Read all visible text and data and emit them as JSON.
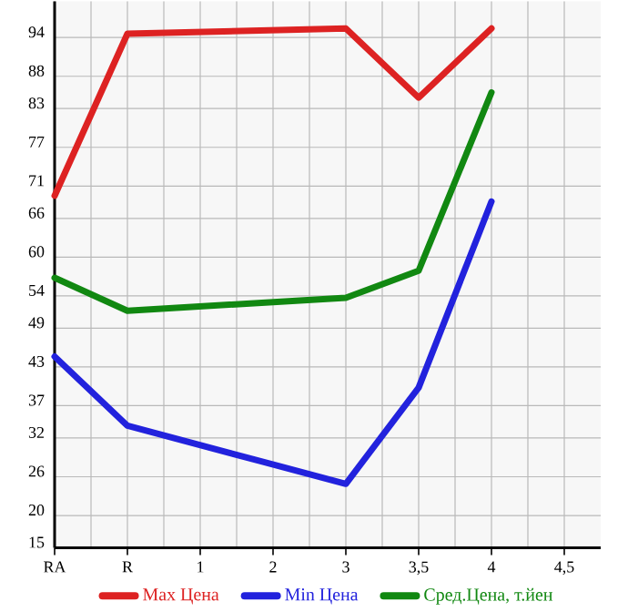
{
  "chart_data": {
    "type": "line",
    "categories": [
      "RA",
      "R",
      "1",
      "2",
      "3",
      "3,5",
      "4",
      "4,5"
    ],
    "series": [
      {
        "name": "Max Цена",
        "color": "#dd2222",
        "values": [
          69.5,
          94.6,
          null,
          null,
          95.4,
          84.7,
          95.4,
          null
        ]
      },
      {
        "name": "Min Цена",
        "color": "#2222dd",
        "values": [
          44.6,
          33.9,
          null,
          null,
          24.9,
          39.8,
          68.6,
          null
        ]
      },
      {
        "name": "Сред.Цена, т.йен",
        "color": "#118811",
        "values": [
          56.8,
          51.7,
          null,
          null,
          53.7,
          57.9,
          85.5,
          null
        ]
      }
    ],
    "ylim": [
      15,
      99.6
    ],
    "yticks": [
      15,
      20,
      26,
      32,
      37,
      43,
      49,
      54,
      60,
      66,
      71,
      77,
      83,
      88,
      94
    ],
    "grid": true,
    "legend": "bottom",
    "marker": "none",
    "line_style": "solid"
  }
}
